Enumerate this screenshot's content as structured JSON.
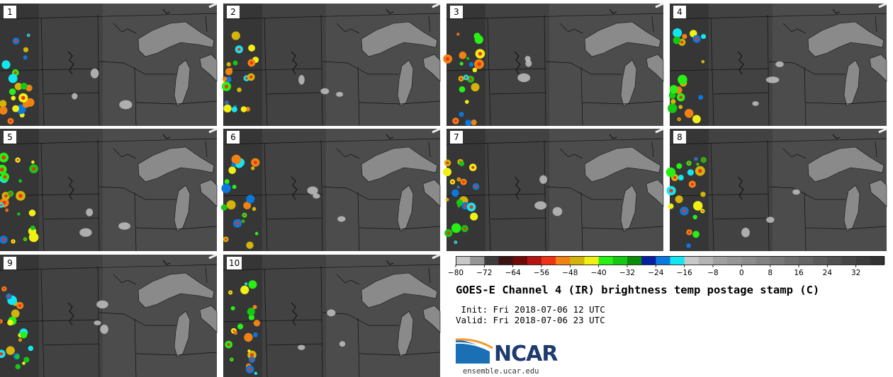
{
  "figure": {
    "title": "GOES-E Channel 4 (IR) brightness temp postage stamp (C)",
    "init": "Init: Fri 2018-07-06 12 UTC",
    "valid": "Valid: Fri 2018-07-06 23 UTC",
    "logo_text": "NCAR",
    "website": "ensemble.ucar.edu"
  },
  "panels": [
    {
      "label": "1"
    },
    {
      "label": "2"
    },
    {
      "label": "3"
    },
    {
      "label": "4"
    },
    {
      "label": "5"
    },
    {
      "label": "6"
    },
    {
      "label": "7"
    },
    {
      "label": "8"
    },
    {
      "label": "9"
    },
    {
      "label": "10"
    }
  ],
  "colorbar": {
    "min": -80,
    "max": 40,
    "step": 4,
    "tick_labels": [
      "−80",
      "−72",
      "−64",
      "−56",
      "−48",
      "−40",
      "−32",
      "−24",
      "−16",
      "−8",
      "0",
      "8",
      "16",
      "24",
      "32"
    ],
    "tick_values": [
      -80,
      -72,
      -64,
      -56,
      -48,
      -40,
      -32,
      -24,
      -16,
      -8,
      0,
      8,
      16,
      24,
      32
    ],
    "colors": [
      "#c8c8c8",
      "#969696",
      "#3c3c3c",
      "#3a1414",
      "#6e0a0a",
      "#b41414",
      "#f03214",
      "#f08214",
      "#d2b40a",
      "#f0f014",
      "#28f014",
      "#14c814",
      "#0a8c0a",
      "#0a1ea0",
      "#0a78dc",
      "#14e6f0",
      "#c8c8c8",
      "#b4b4b4",
      "#a0a0a0",
      "#969696",
      "#8c8c8c",
      "#828282",
      "#787878",
      "#6e6e6e",
      "#646464",
      "#5a5a5a",
      "#505050",
      "#464646",
      "#3c3c3c",
      "#323232"
    ]
  }
}
